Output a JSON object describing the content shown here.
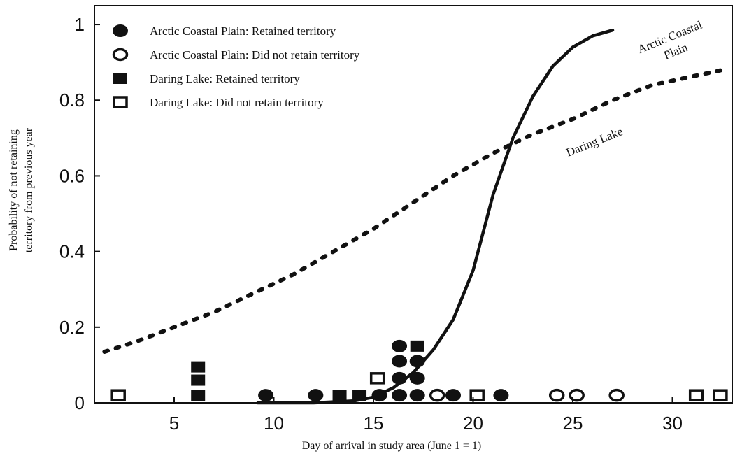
{
  "chart_data": {
    "type": "scatter",
    "title": "",
    "xlabel": "Day of arrival in study area (June 1 = 1)",
    "ylabel_lines": [
      "Probability of not retaining",
      "territory from previous year"
    ],
    "xlim": [
      1,
      33
    ],
    "ylim": [
      0,
      1.05
    ],
    "xticks": [
      5,
      10,
      15,
      20,
      25,
      30
    ],
    "yticks": [
      0,
      0.2,
      0.4,
      0.6,
      0.8,
      1
    ],
    "ytick_labels": [
      "0",
      "0.2",
      "0.4",
      "0.6",
      "0.8",
      "1"
    ],
    "legend_position": "top-left",
    "grid": false,
    "series": [
      {
        "name": "Arctic Coastal Plain: Retained territory",
        "marker": "filled-circle",
        "points": [
          [
            9.6,
            0.02
          ],
          [
            12.1,
            0.02
          ],
          [
            15.3,
            0.02
          ],
          [
            16.3,
            0.02
          ],
          [
            16.3,
            0.065
          ],
          [
            16.3,
            0.11
          ],
          [
            16.3,
            0.15
          ],
          [
            17.2,
            0.02
          ],
          [
            17.2,
            0.065
          ],
          [
            17.2,
            0.11
          ],
          [
            19.0,
            0.02
          ],
          [
            21.4,
            0.02
          ]
        ]
      },
      {
        "name": "Arctic Coastal Plain: Did not retain territory",
        "marker": "open-circle",
        "points": [
          [
            18.2,
            0.02
          ],
          [
            24.2,
            0.02
          ],
          [
            25.2,
            0.02
          ],
          [
            27.2,
            0.02
          ]
        ]
      },
      {
        "name": "Daring Lake: Retained territory",
        "marker": "filled-square",
        "points": [
          [
            6.2,
            0.02
          ],
          [
            6.2,
            0.06
          ],
          [
            6.2,
            0.095
          ],
          [
            13.3,
            0.02
          ],
          [
            14.3,
            0.02
          ],
          [
            17.2,
            0.15
          ]
        ]
      },
      {
        "name": "Daring Lake: Did not retain territory",
        "marker": "open-square",
        "points": [
          [
            2.2,
            0.02
          ],
          [
            15.2,
            0.065
          ],
          [
            20.2,
            0.02
          ],
          [
            31.2,
            0.02
          ],
          [
            32.4,
            0.02
          ]
        ]
      }
    ],
    "curves": [
      {
        "name": "Arctic Coastal Plain",
        "label_lines": [
          "Arctic Coastal",
          "Plain"
        ],
        "style": "solid",
        "points": [
          [
            9.2,
            0.0
          ],
          [
            10,
            0.0
          ],
          [
            12,
            0.0
          ],
          [
            14,
            0.005
          ],
          [
            15,
            0.015
          ],
          [
            16,
            0.04
          ],
          [
            17,
            0.08
          ],
          [
            18,
            0.14
          ],
          [
            19,
            0.22
          ],
          [
            20,
            0.35
          ],
          [
            21,
            0.55
          ],
          [
            22,
            0.7
          ],
          [
            23,
            0.81
          ],
          [
            24,
            0.89
          ],
          [
            25,
            0.94
          ],
          [
            26,
            0.97
          ],
          [
            27,
            0.985
          ]
        ]
      },
      {
        "name": "Daring Lake",
        "label_lines": [
          "Daring Lake"
        ],
        "style": "dotted",
        "points": [
          [
            1.5,
            0.135
          ],
          [
            3,
            0.16
          ],
          [
            5,
            0.2
          ],
          [
            7,
            0.24
          ],
          [
            9,
            0.29
          ],
          [
            11,
            0.34
          ],
          [
            13,
            0.4
          ],
          [
            15,
            0.46
          ],
          [
            17,
            0.53
          ],
          [
            19,
            0.6
          ],
          [
            21,
            0.66
          ],
          [
            23,
            0.71
          ],
          [
            25,
            0.75
          ],
          [
            27,
            0.8
          ],
          [
            29,
            0.84
          ],
          [
            32.5,
            0.88
          ]
        ]
      }
    ]
  }
}
